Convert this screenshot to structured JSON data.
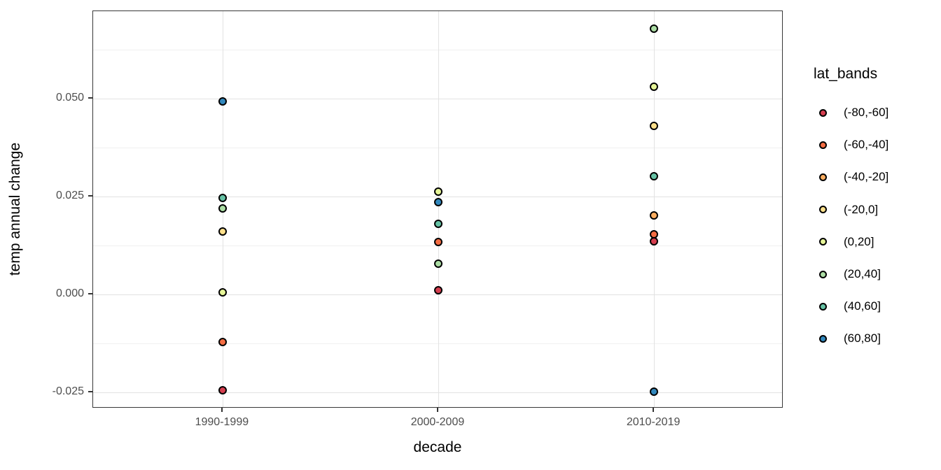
{
  "chart_data": {
    "type": "scatter",
    "title": "",
    "xlabel": "decade",
    "ylabel": "temp annual change",
    "categories": [
      "1990-1999",
      "2000-2009",
      "2010-2019"
    ],
    "ylim": [
      -0.0291,
      0.0723
    ],
    "y_ticks": [
      {
        "label": "0.050",
        "value": 0.05
      },
      {
        "label": "0.025",
        "value": 0.025
      },
      {
        "label": "0.000",
        "value": 0.0
      },
      {
        "label": "-0.025",
        "value": -0.025
      }
    ],
    "y_minor_ticks": [
      0.0625,
      0.0375,
      0.0125,
      -0.0125
    ],
    "grid": true,
    "legend": {
      "title": "lat_bands",
      "position": "right",
      "items": [
        {
          "label": "(-80,-60]",
          "color": "#d53e4f"
        },
        {
          "label": "(-60,-40]",
          "color": "#f46d43"
        },
        {
          "label": "(-40,-20]",
          "color": "#fdae61"
        },
        {
          "label": "(-20,0]",
          "color": "#fee08b"
        },
        {
          "label": "(0,20]",
          "color": "#e6f598"
        },
        {
          "label": "(20,40]",
          "color": "#abdda4"
        },
        {
          "label": "(40,60]",
          "color": "#66c2a5"
        },
        {
          "label": "(60,80]",
          "color": "#3288bd"
        }
      ]
    },
    "series": [
      {
        "name": "(-80,-60]",
        "color": "#d53e4f",
        "points": [
          {
            "x": "1990-1999",
            "y": -0.0245
          },
          {
            "x": "2000-2009",
            "y": 0.0011
          },
          {
            "x": "2010-2019",
            "y": 0.0136
          }
        ]
      },
      {
        "name": "(-60,-40]",
        "color": "#f46d43",
        "points": [
          {
            "x": "1990-1999",
            "y": -0.0122
          },
          {
            "x": "2000-2009",
            "y": 0.0133
          },
          {
            "x": "2010-2019",
            "y": 0.0153
          }
        ]
      },
      {
        "name": "(-40,-20]",
        "color": "#fdae61",
        "points": [
          {
            "x": "2010-2019",
            "y": 0.0201
          }
        ]
      },
      {
        "name": "(-20,0]",
        "color": "#fee08b",
        "points": [
          {
            "x": "1990-1999",
            "y": 0.0161
          },
          {
            "x": "2010-2019",
            "y": 0.043
          }
        ]
      },
      {
        "name": "(0,20]",
        "color": "#e6f598",
        "points": [
          {
            "x": "1990-1999",
            "y": 0.0006
          },
          {
            "x": "2000-2009",
            "y": 0.0263
          },
          {
            "x": "2010-2019",
            "y": 0.053
          }
        ]
      },
      {
        "name": "(20,40]",
        "color": "#abdda4",
        "points": [
          {
            "x": "1990-1999",
            "y": 0.0219
          },
          {
            "x": "2000-2009",
            "y": 0.0079
          },
          {
            "x": "2010-2019",
            "y": 0.0679
          }
        ]
      },
      {
        "name": "(40,60]",
        "color": "#66c2a5",
        "points": [
          {
            "x": "1990-1999",
            "y": 0.0246
          },
          {
            "x": "2000-2009",
            "y": 0.018
          },
          {
            "x": "2010-2019",
            "y": 0.0301
          }
        ]
      },
      {
        "name": "(60,80]",
        "color": "#3288bd",
        "points": [
          {
            "x": "1990-1999",
            "y": 0.0493
          },
          {
            "x": "2000-2009",
            "y": 0.0235
          },
          {
            "x": "2010-2019",
            "y": -0.0249
          }
        ]
      }
    ]
  }
}
